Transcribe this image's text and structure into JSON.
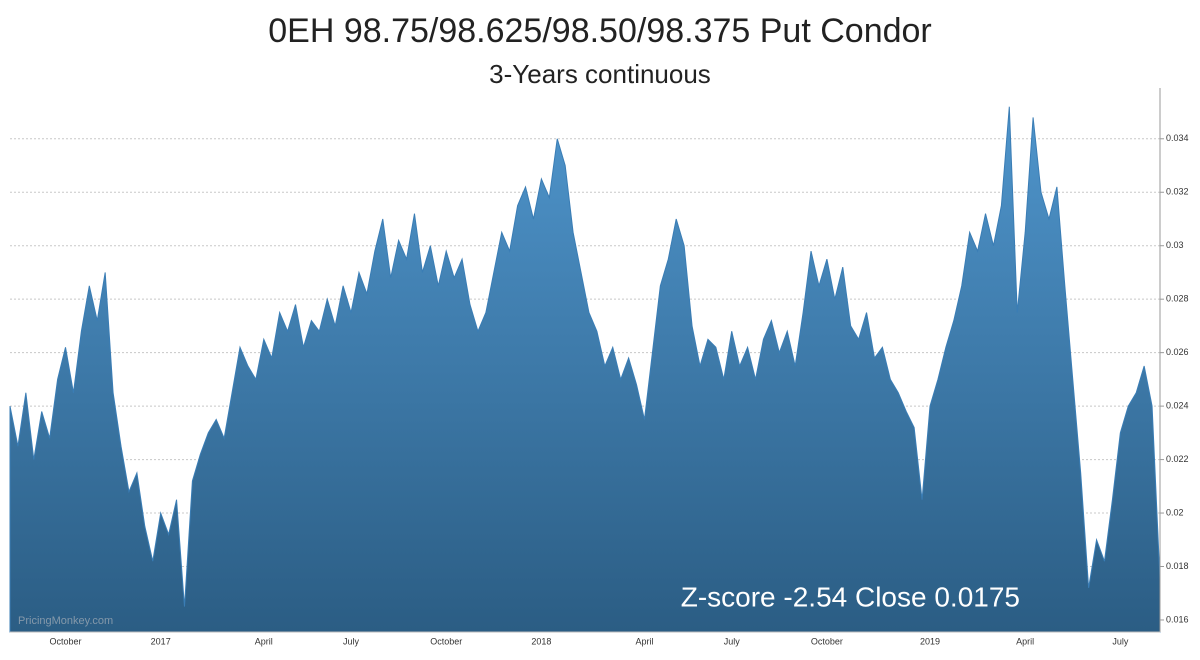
{
  "chart_data": {
    "type": "area",
    "title": "0EH 98.75/98.625/98.50/98.375 Put Condor",
    "subtitle": "3-Years continuous",
    "annotation": "Z-score -2.54 Close 0.0175",
    "watermark": "PricingMonkey.com",
    "color": "#3a7db5",
    "grid": true,
    "ylim": [
      0.01555,
      0.0359
    ],
    "yticks": [
      0.016,
      0.018,
      0.02,
      0.022,
      0.024,
      0.026,
      0.028,
      0.03,
      0.032,
      0.034
    ],
    "categories": [
      null,
      null,
      null,
      null,
      null,
      null,
      null,
      "October",
      null,
      null,
      null,
      null,
      null,
      null,
      null,
      null,
      null,
      null,
      null,
      "2017",
      null,
      null,
      null,
      null,
      null,
      null,
      null,
      null,
      null,
      null,
      null,
      null,
      "April",
      null,
      null,
      null,
      null,
      null,
      null,
      null,
      null,
      null,
      null,
      "July",
      null,
      null,
      null,
      null,
      null,
      null,
      null,
      null,
      null,
      null,
      null,
      "October",
      null,
      null,
      null,
      null,
      null,
      null,
      null,
      null,
      null,
      null,
      null,
      "2018",
      null,
      null,
      null,
      null,
      null,
      null,
      null,
      null,
      null,
      null,
      null,
      null,
      "April",
      null,
      null,
      null,
      null,
      null,
      null,
      null,
      null,
      null,
      null,
      "July",
      null,
      null,
      null,
      null,
      null,
      null,
      null,
      null,
      null,
      null,
      null,
      "October",
      null,
      null,
      null,
      null,
      null,
      null,
      null,
      null,
      null,
      null,
      null,
      null,
      "2019",
      null,
      null,
      null,
      null,
      null,
      null,
      null,
      null,
      null,
      null,
      null,
      "April",
      null,
      null,
      null,
      null,
      null,
      null,
      null,
      null,
      null,
      null,
      null,
      "July",
      null,
      null,
      null,
      null,
      null
    ],
    "values": [
      0.024,
      0.0225,
      0.0245,
      0.022,
      0.0238,
      0.0228,
      0.025,
      0.0262,
      0.0245,
      0.0268,
      0.0285,
      0.0272,
      0.029,
      0.0245,
      0.0225,
      0.0208,
      0.0215,
      0.0195,
      0.0182,
      0.02,
      0.0192,
      0.0205,
      0.0165,
      0.0212,
      0.0222,
      0.023,
      0.0235,
      0.0228,
      0.0245,
      0.0262,
      0.0255,
      0.025,
      0.0265,
      0.0258,
      0.0275,
      0.0268,
      0.0278,
      0.0262,
      0.0272,
      0.0268,
      0.028,
      0.027,
      0.0285,
      0.0275,
      0.029,
      0.0282,
      0.0298,
      0.031,
      0.0288,
      0.0302,
      0.0295,
      0.0312,
      0.029,
      0.03,
      0.0285,
      0.0298,
      0.0288,
      0.0295,
      0.0278,
      0.0268,
      0.0275,
      0.029,
      0.0305,
      0.0298,
      0.0315,
      0.0322,
      0.031,
      0.0325,
      0.0318,
      0.034,
      0.033,
      0.0305,
      0.029,
      0.0275,
      0.0268,
      0.0255,
      0.0262,
      0.025,
      0.0258,
      0.0248,
      0.0235,
      0.026,
      0.0285,
      0.0295,
      0.031,
      0.03,
      0.027,
      0.0255,
      0.0265,
      0.0262,
      0.025,
      0.0268,
      0.0255,
      0.0262,
      0.025,
      0.0265,
      0.0272,
      0.026,
      0.0268,
      0.0255,
      0.0275,
      0.0298,
      0.0285,
      0.0295,
      0.028,
      0.0292,
      0.027,
      0.0265,
      0.0275,
      0.0258,
      0.0262,
      0.025,
      0.0245,
      0.0238,
      0.0232,
      0.0205,
      0.024,
      0.025,
      0.0262,
      0.0272,
      0.0285,
      0.0305,
      0.0298,
      0.0312,
      0.03,
      0.0315,
      0.0352,
      0.0275,
      0.0305,
      0.0348,
      0.032,
      0.031,
      0.0322,
      0.0285,
      0.025,
      0.0215,
      0.0172,
      0.019,
      0.0182,
      0.0205,
      0.023,
      0.024,
      0.0245,
      0.0255,
      0.024,
      0.0175
    ]
  }
}
